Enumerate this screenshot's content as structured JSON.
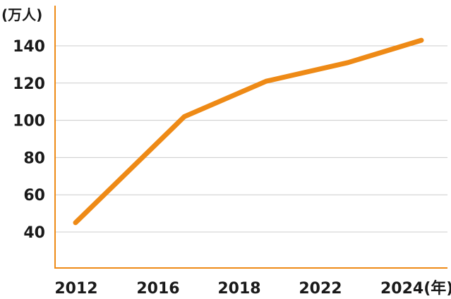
{
  "chart_data": {
    "type": "line",
    "title": "",
    "y_unit_label": "(万人)",
    "x_unit_suffix": "(年)",
    "categories": [
      "2012",
      "2016",
      "2018",
      "2022",
      "2024"
    ],
    "ylim": [
      20,
      150
    ],
    "y_ticks": [
      40,
      60,
      80,
      100,
      120,
      140
    ],
    "grid": true,
    "legend": "none",
    "series": [
      {
        "x": [
          2012,
          2016,
          2019,
          2022,
          2024.7
        ],
        "values": [
          45,
          102,
          121,
          131,
          143
        ]
      }
    ],
    "colors": {
      "line": "#ee8a16",
      "axis": "#ee8a16",
      "grid": "#cccccc"
    }
  }
}
